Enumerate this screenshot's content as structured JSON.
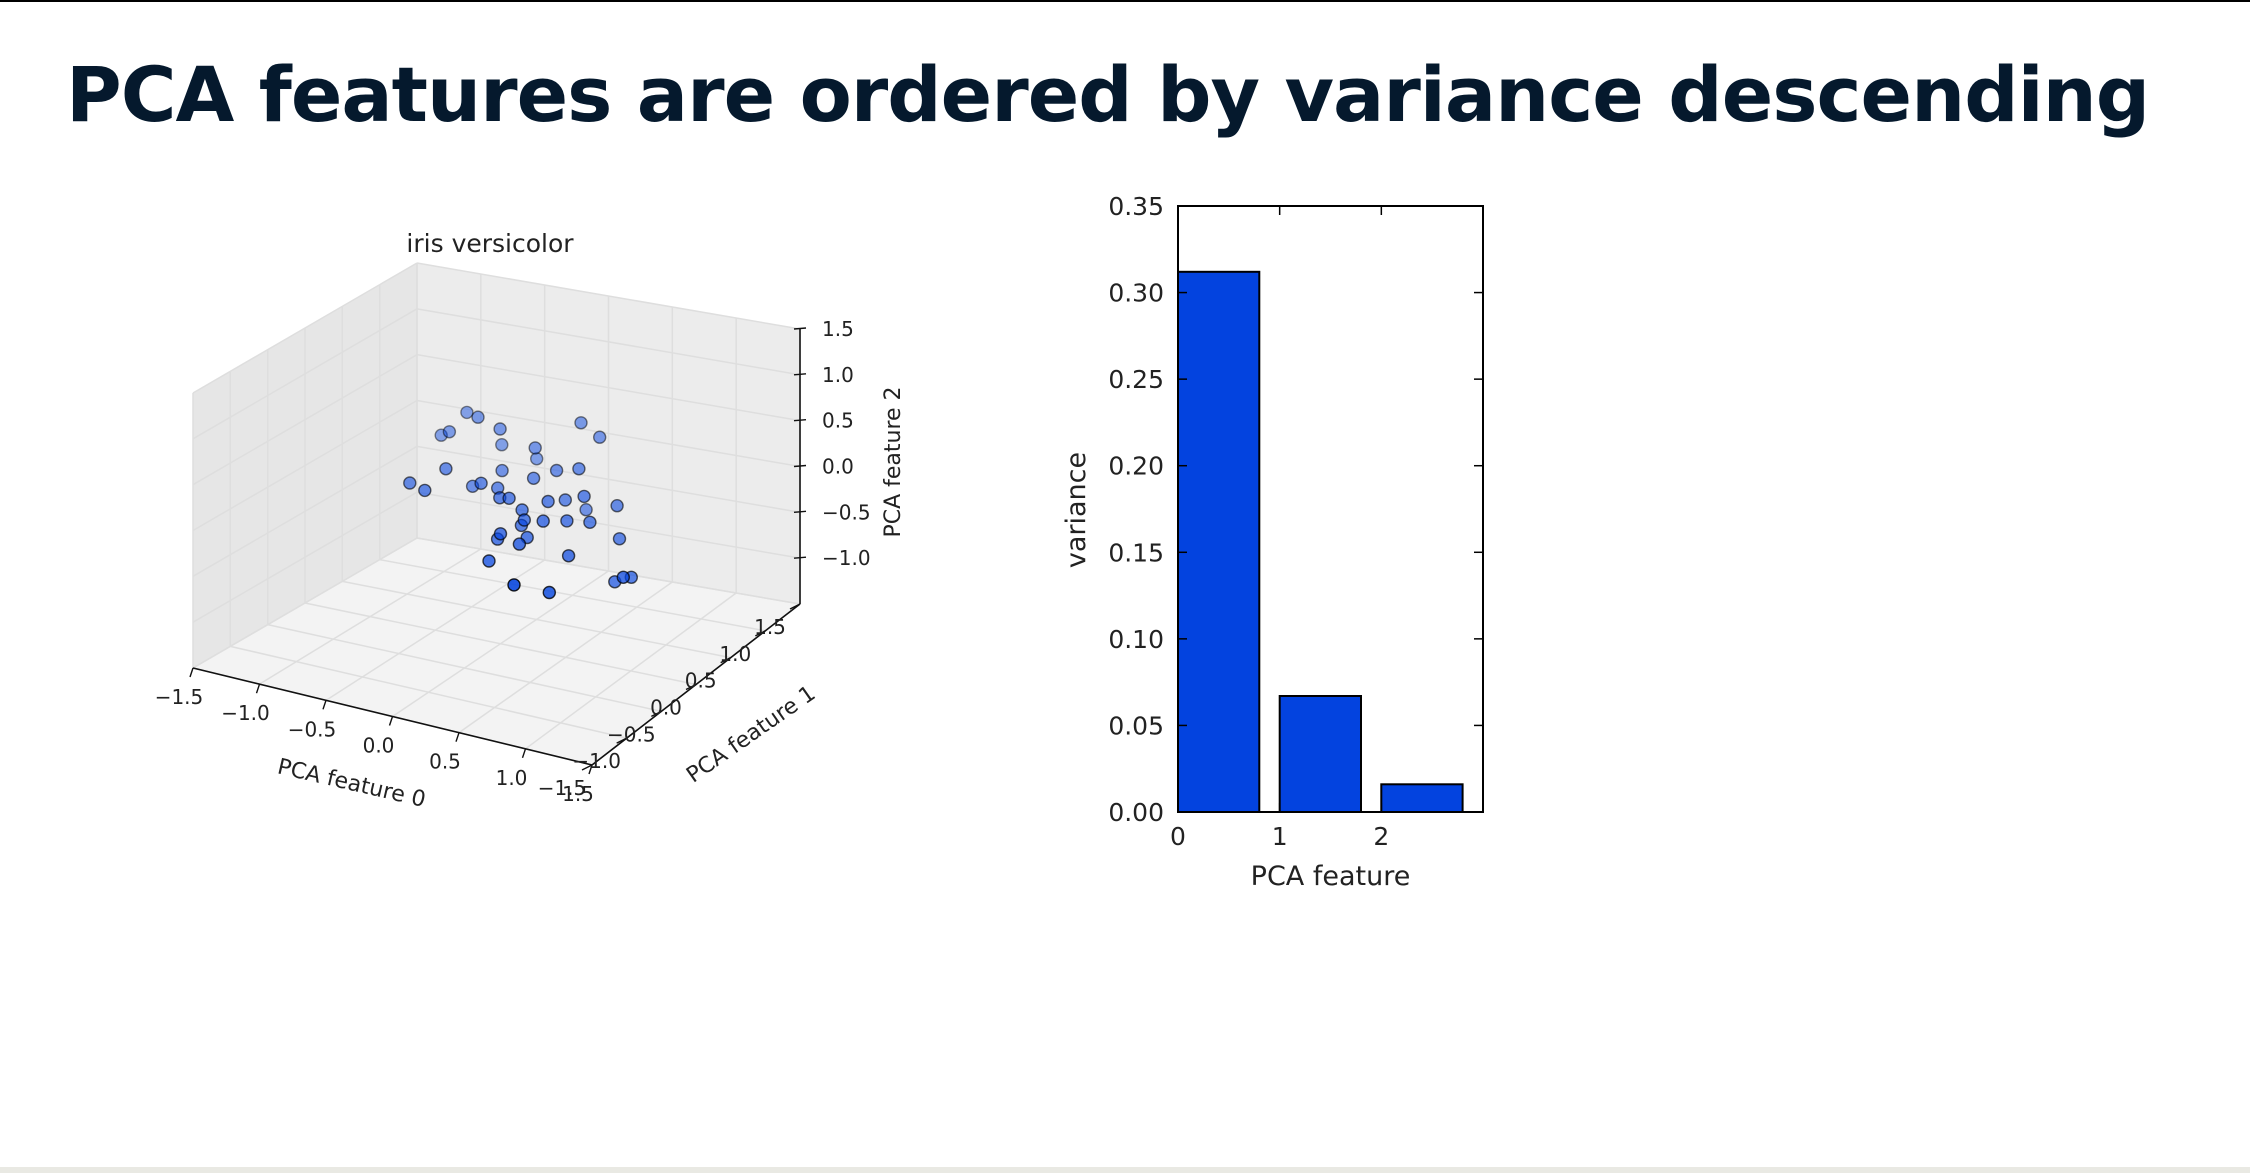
{
  "slide": {
    "title": "PCA features are ordered by variance descending"
  },
  "chart_data": [
    {
      "type": "scatter",
      "projection": "3d",
      "title": "iris versicolor",
      "xlabel": "PCA feature 0",
      "ylabel": "PCA feature 1",
      "zlabel": "PCA feature 2",
      "xlim": [
        -1.5,
        1.5
      ],
      "ylim": [
        -1.5,
        1.5
      ],
      "zlim": [
        -1.5,
        1.5
      ],
      "xticks": [
        "−1.5",
        "−1.0",
        "−0.5",
        "0.0",
        "0.5",
        "1.0",
        "1.5"
      ],
      "yticks": [
        "−1.5",
        "−1.0",
        "−0.5",
        "0.0",
        "0.5",
        "1.0",
        "1.5"
      ],
      "zticks": [
        "−1.0",
        "−0.5",
        "0.0",
        "0.5",
        "1.0",
        "1.5"
      ],
      "grid": true,
      "marker_color": "#0343df",
      "points": [
        {
          "x": 0.62,
          "y": -0.95,
          "z": -0.15
        },
        {
          "x": 1.05,
          "y": -0.2,
          "z": -0.35
        },
        {
          "x": 0.95,
          "y": 0.1,
          "z": -0.55
        },
        {
          "x": 0.85,
          "y": 0.05,
          "z": -0.6
        },
        {
          "x": 0.55,
          "y": -0.05,
          "z": -0.35
        },
        {
          "x": 0.1,
          "y": 0.15,
          "z": -0.2
        },
        {
          "x": -0.7,
          "y": 0.5,
          "z": -0.05
        },
        {
          "x": -0.55,
          "y": 0.6,
          "z": -0.25
        },
        {
          "x": -0.4,
          "y": 0.45,
          "z": -0.1
        },
        {
          "x": -0.3,
          "y": 0.5,
          "z": -0.15
        },
        {
          "x": -0.2,
          "y": 0.35,
          "z": -0.15
        },
        {
          "x": -0.1,
          "y": 0.3,
          "z": -0.1
        },
        {
          "x": 0.0,
          "y": 0.3,
          "z": -0.2
        },
        {
          "x": 0.05,
          "y": 0.2,
          "z": -0.3
        },
        {
          "x": 0.15,
          "y": 0.1,
          "z": -0.35
        },
        {
          "x": 0.2,
          "y": 0.3,
          "z": -0.05
        },
        {
          "x": 0.3,
          "y": 0.05,
          "z": -0.1
        },
        {
          "x": 0.4,
          "y": 0.2,
          "z": -0.15
        },
        {
          "x": 0.45,
          "y": 0.35,
          "z": 0.05
        },
        {
          "x": 0.25,
          "y": 0.45,
          "z": -0.1
        },
        {
          "x": -0.05,
          "y": 0.55,
          "z": 0.0
        },
        {
          "x": 0.1,
          "y": 0.6,
          "z": 0.1
        },
        {
          "x": 0.3,
          "y": 0.55,
          "z": 0.2
        },
        {
          "x": 0.35,
          "y": 0.75,
          "z": 0.45
        },
        {
          "x": 0.15,
          "y": 0.85,
          "z": 0.5
        },
        {
          "x": -0.15,
          "y": 0.75,
          "z": 0.2
        },
        {
          "x": -0.45,
          "y": 0.8,
          "z": 0.3
        },
        {
          "x": -0.65,
          "y": 0.85,
          "z": 0.35
        },
        {
          "x": -0.9,
          "y": 0.9,
          "z": 0.1
        },
        {
          "x": -1.05,
          "y": 1.05,
          "z": -0.05
        },
        {
          "x": -0.85,
          "y": 1.05,
          "z": 0.25
        },
        {
          "x": -0.55,
          "y": 1.0,
          "z": 0.0
        },
        {
          "x": -0.25,
          "y": 0.95,
          "z": -0.05
        },
        {
          "x": -0.75,
          "y": 0.3,
          "z": -0.2
        },
        {
          "x": -0.95,
          "y": 0.45,
          "z": -0.25
        },
        {
          "x": 0.2,
          "y": -0.1,
          "z": -0.3
        },
        {
          "x": 0.55,
          "y": 0.25,
          "z": -0.15
        },
        {
          "x": 0.75,
          "y": 0.3,
          "z": -0.3
        },
        {
          "x": -0.05,
          "y": 0.05,
          "z": -0.4
        },
        {
          "x": 0.05,
          "y": -0.25,
          "z": -0.45
        },
        {
          "x": 0.3,
          "y": 0.65,
          "z": -0.3
        },
        {
          "x": -0.35,
          "y": 0.65,
          "z": -0.05
        },
        {
          "x": 0.65,
          "y": 0.45,
          "z": -0.05
        },
        {
          "x": 0.7,
          "y": -0.6,
          "z": -0.4
        },
        {
          "x": 0.0,
          "y": 0.0,
          "z": -0.3
        }
      ]
    },
    {
      "type": "bar",
      "categories": [
        0,
        1,
        2
      ],
      "values": [
        0.312,
        0.067,
        0.016
      ],
      "xlabel": "PCA feature",
      "ylabel": "variance",
      "ylim": [
        0,
        0.35
      ],
      "yticks": [
        "0.00",
        "0.05",
        "0.10",
        "0.15",
        "0.20",
        "0.25",
        "0.30",
        "0.35"
      ],
      "xticks": [
        "0",
        "1",
        "2"
      ],
      "bar_color": "#0343df"
    }
  ]
}
